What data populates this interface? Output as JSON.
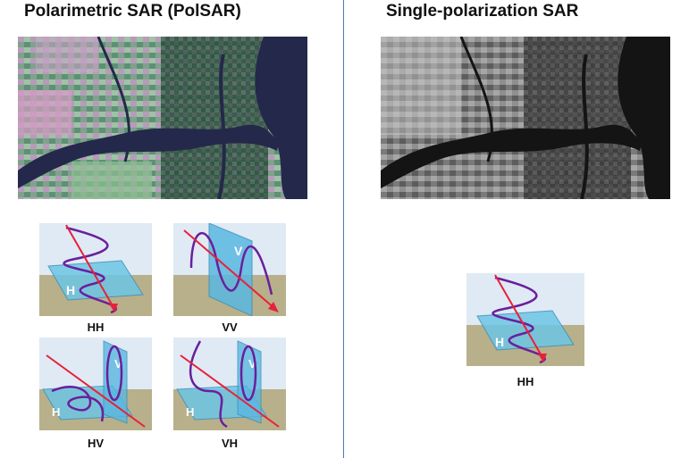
{
  "left_panel": {
    "title": "Polarimetric SAR (PolSAR)",
    "image_alt": "PolSAR false-color image",
    "tiles": [
      {
        "id": "hh",
        "caption": "HH",
        "plane_labels": [
          "H"
        ]
      },
      {
        "id": "vv",
        "caption": "VV",
        "plane_labels": [
          "V"
        ]
      },
      {
        "id": "hv",
        "caption": "HV",
        "plane_labels": [
          "H",
          "V"
        ]
      },
      {
        "id": "vh",
        "caption": "VH",
        "plane_labels": [
          "H",
          "V"
        ]
      }
    ]
  },
  "right_panel": {
    "title": "Single-polarization SAR",
    "image_alt": "single-polarization grayscale image",
    "tile": {
      "id": "hh-single",
      "caption": "HH",
      "plane_labels": [
        "H"
      ]
    }
  },
  "colors": {
    "divider": "#4a78b8",
    "arrow": "#e8203a",
    "wave": "#6a1f9c",
    "plane_h": "#6ec6e6",
    "plane_v": "#5ab8e0",
    "sky": "#dfeaf5",
    "ground": "#b8b08a",
    "river_polsar": "#24284a",
    "river_single": "#141414"
  }
}
